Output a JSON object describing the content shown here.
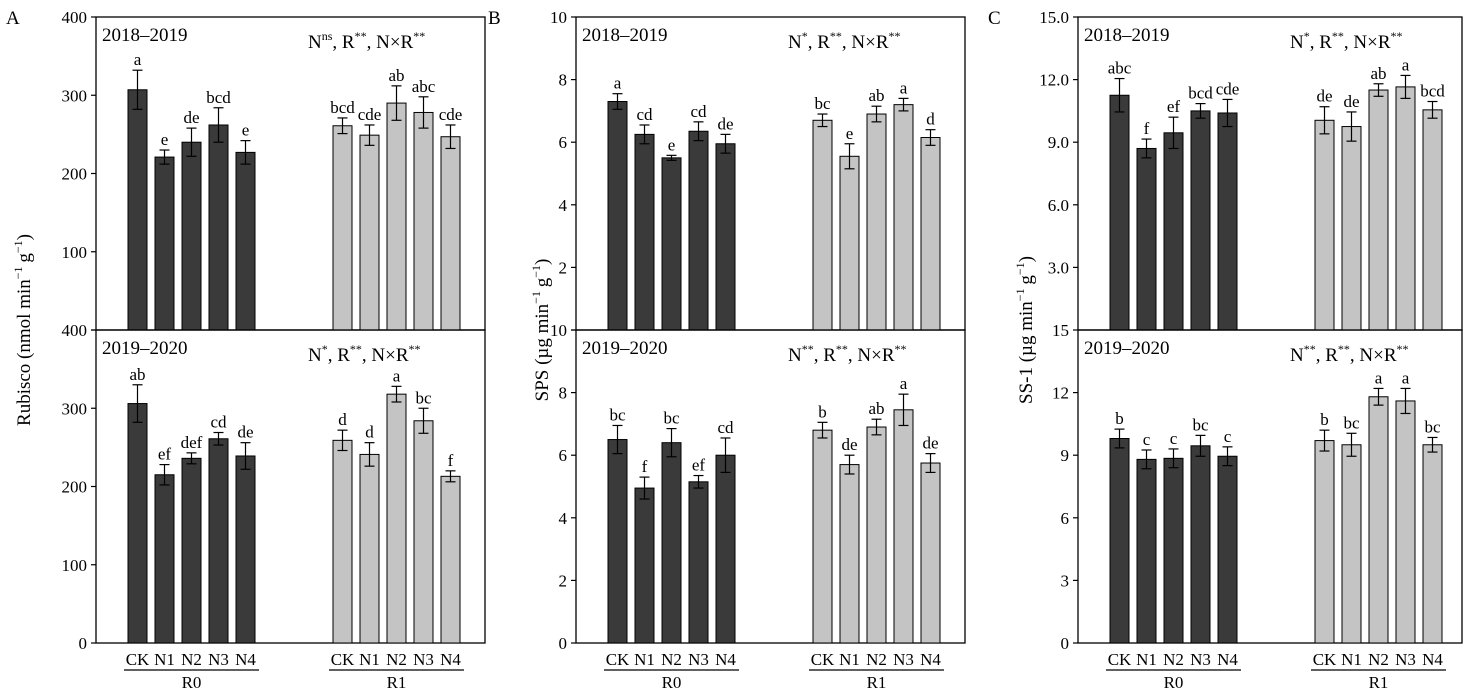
{
  "chart_data": [
    {
      "type": "bar",
      "panel_label": "A",
      "ylabel": "Rubisco (nmol min⁻¹ g⁻¹)",
      "ylabel_main": "Rubisco (nmol min",
      "ylabel_unit": "g",
      "ylabel_sup": "−1",
      "ylabel_close": ")",
      "groups": [
        "R0",
        "R1"
      ],
      "categories": [
        "CK",
        "N1",
        "N2",
        "N3",
        "N4"
      ],
      "colors": {
        "R0": "#3a3a3a",
        "R1": "#c4c4c4"
      },
      "subplots": [
        {
          "year": "2018–2019",
          "stat": [
            [
              "N",
              "ns"
            ],
            [
              ", R",
              "**"
            ],
            [
              ", N×R",
              "**"
            ]
          ],
          "ylim": [
            0,
            400
          ],
          "yticks": [
            0,
            100,
            200,
            300,
            400
          ],
          "tick_labels": [
            "",
            "100",
            "200",
            "300",
            "400"
          ],
          "series": [
            {
              "group": "R0",
              "values": [
                307,
                221,
                240,
                262,
                227
              ],
              "errors": [
                25,
                9,
                18,
                22,
                15
              ],
              "letters": [
                "a",
                "e",
                "de",
                "bcd",
                "e"
              ]
            },
            {
              "group": "R1",
              "values": [
                261,
                249,
                290,
                278,
                247
              ],
              "errors": [
                10,
                13,
                22,
                20,
                15
              ],
              "letters": [
                "bcd",
                "cde",
                "ab",
                "abc",
                "cde"
              ]
            }
          ]
        },
        {
          "year": "2019–2020",
          "stat": [
            [
              "N",
              "*"
            ],
            [
              ", R",
              "**"
            ],
            [
              ", N×R",
              "**"
            ]
          ],
          "ylim": [
            0,
            400
          ],
          "yticks": [
            0,
            100,
            200,
            300,
            400
          ],
          "tick_labels": [
            "0",
            "100",
            "200",
            "300",
            "400"
          ],
          "series": [
            {
              "group": "R0",
              "values": [
                306,
                215,
                236,
                261,
                239
              ],
              "errors": [
                24,
                13,
                7,
                8,
                17
              ],
              "letters": [
                "ab",
                "ef",
                "def",
                "cd",
                "de"
              ]
            },
            {
              "group": "R1",
              "values": [
                259,
                241,
                318,
                284,
                213
              ],
              "errors": [
                13,
                15,
                10,
                16,
                7
              ],
              "letters": [
                "d",
                "d",
                "a",
                "bc",
                "f"
              ]
            }
          ]
        }
      ]
    },
    {
      "type": "bar",
      "panel_label": "B",
      "ylabel": "SPS (µg min⁻¹ g⁻¹)",
      "ylabel_main": "SPS (µg min",
      "ylabel_unit": "g",
      "ylabel_sup": "−1",
      "ylabel_close": ")",
      "groups": [
        "R0",
        "R1"
      ],
      "categories": [
        "CK",
        "N1",
        "N2",
        "N3",
        "N4"
      ],
      "colors": {
        "R0": "#3a3a3a",
        "R1": "#c4c4c4"
      },
      "subplots": [
        {
          "year": "2018–2019",
          "stat": [
            [
              "N",
              "*"
            ],
            [
              ", R",
              "**"
            ],
            [
              ", N×R",
              "**"
            ]
          ],
          "ylim": [
            0,
            10
          ],
          "yticks": [
            0,
            2,
            4,
            6,
            8,
            10
          ],
          "tick_labels": [
            "",
            "2",
            "4",
            "6",
            "8",
            "10"
          ],
          "series": [
            {
              "group": "R0",
              "values": [
                7.3,
                6.25,
                5.5,
                6.35,
                5.95
              ],
              "errors": [
                0.25,
                0.3,
                0.08,
                0.3,
                0.3
              ],
              "letters": [
                "a",
                "cd",
                "e",
                "cd",
                "de"
              ]
            },
            {
              "group": "R1",
              "values": [
                6.7,
                5.55,
                6.9,
                7.2,
                6.15
              ],
              "errors": [
                0.2,
                0.4,
                0.25,
                0.2,
                0.25
              ],
              "letters": [
                "bc",
                "e",
                "ab",
                "a",
                "d"
              ]
            }
          ]
        },
        {
          "year": "2019–2020",
          "stat": [
            [
              "N",
              "**"
            ],
            [
              ", R",
              "**"
            ],
            [
              ", N×R",
              "**"
            ]
          ],
          "ylim": [
            0,
            10
          ],
          "yticks": [
            0,
            2,
            4,
            6,
            8,
            10
          ],
          "tick_labels": [
            "0",
            "2",
            "4",
            "6",
            "8",
            "10"
          ],
          "series": [
            {
              "group": "R0",
              "values": [
                6.5,
                4.95,
                6.4,
                5.15,
                6.0
              ],
              "errors": [
                0.45,
                0.35,
                0.45,
                0.2,
                0.55
              ],
              "letters": [
                "bc",
                "f",
                "bc",
                "ef",
                "cd"
              ]
            },
            {
              "group": "R1",
              "values": [
                6.8,
                5.7,
                6.9,
                7.45,
                5.75
              ],
              "errors": [
                0.25,
                0.3,
                0.25,
                0.5,
                0.3
              ],
              "letters": [
                "b",
                "de",
                "ab",
                "a",
                "de"
              ]
            }
          ]
        }
      ]
    },
    {
      "type": "bar",
      "panel_label": "C",
      "ylabel": "SS-1 (µg min⁻¹ g⁻¹)",
      "ylabel_main": "SS-1 (µg min",
      "ylabel_unit": "g",
      "ylabel_sup": "−1",
      "ylabel_close": ")",
      "groups": [
        "R0",
        "R1"
      ],
      "categories": [
        "CK",
        "N1",
        "N2",
        "N3",
        "N4"
      ],
      "colors": {
        "R0": "#3a3a3a",
        "R1": "#c4c4c4"
      },
      "subplots": [
        {
          "year": "2018–2019",
          "stat": [
            [
              "N",
              "*"
            ],
            [
              ", R",
              "**"
            ],
            [
              ", N×R",
              "**"
            ]
          ],
          "ylim": [
            0,
            15
          ],
          "yticks": [
            3,
            6,
            9,
            12,
            15
          ],
          "tick_labels": [
            "3.0",
            "6.0",
            "9.0",
            "12.0",
            "15.0"
          ],
          "series": [
            {
              "group": "R0",
              "values": [
                11.25,
                8.7,
                9.45,
                10.5,
                10.4
              ],
              "errors": [
                0.8,
                0.45,
                0.75,
                0.35,
                0.65
              ],
              "letters": [
                "abc",
                "f",
                "ef",
                "bcd",
                "cde"
              ]
            },
            {
              "group": "R1",
              "values": [
                10.05,
                9.75,
                11.5,
                11.65,
                10.55
              ],
              "errors": [
                0.65,
                0.7,
                0.3,
                0.55,
                0.4
              ],
              "letters": [
                "de",
                "de",
                "ab",
                "a",
                "bcd"
              ]
            }
          ]
        },
        {
          "year": "2019–2020",
          "stat": [
            [
              "N",
              "**"
            ],
            [
              ", R",
              "**"
            ],
            [
              ", N×R",
              "**"
            ]
          ],
          "ylim": [
            0,
            15
          ],
          "yticks": [
            0,
            3,
            6,
            9,
            12,
            15
          ],
          "tick_labels": [
            "0",
            "3",
            "6",
            "9",
            "12",
            "15"
          ],
          "series": [
            {
              "group": "R0",
              "values": [
                9.8,
                8.8,
                8.85,
                9.45,
                8.95
              ],
              "errors": [
                0.45,
                0.45,
                0.45,
                0.5,
                0.45
              ],
              "letters": [
                "b",
                "c",
                "c",
                "bc",
                "c"
              ]
            },
            {
              "group": "R1",
              "values": [
                9.7,
                9.5,
                11.8,
                11.6,
                9.5
              ],
              "errors": [
                0.5,
                0.55,
                0.4,
                0.6,
                0.35
              ],
              "letters": [
                "b",
                "bc",
                "a",
                "a",
                "bc"
              ]
            }
          ]
        }
      ]
    }
  ]
}
